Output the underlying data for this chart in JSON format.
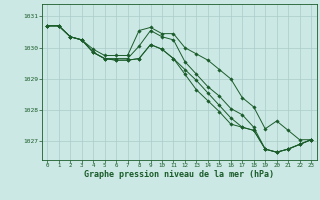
{
  "title": "Graphe pression niveau de la mer (hPa)",
  "bg_color": "#cce8e4",
  "grid_color": "#aaccca",
  "line_color": "#1a5c2a",
  "marker_color": "#1a5c2a",
  "tick_color": "#1a5c2a",
  "ylim": [
    1026.4,
    1031.4
  ],
  "xlim": [
    -0.5,
    23.5
  ],
  "yticks": [
    1027,
    1028,
    1029,
    1030,
    1031
  ],
  "xticks": [
    0,
    1,
    2,
    3,
    4,
    5,
    6,
    7,
    8,
    9,
    10,
    11,
    12,
    13,
    14,
    15,
    16,
    17,
    18,
    19,
    20,
    21,
    22,
    23
  ],
  "series": [
    [
      1030.7,
      1030.7,
      1030.35,
      1030.25,
      1029.95,
      1029.75,
      1029.75,
      1029.75,
      1030.55,
      1030.65,
      1030.45,
      1030.45,
      1030.0,
      1029.8,
      1029.6,
      1029.3,
      1029.0,
      1028.4,
      1028.1,
      1027.4,
      1027.65,
      1027.35,
      1027.05,
      1027.05
    ],
    [
      1030.7,
      1030.7,
      1030.35,
      1030.25,
      1029.85,
      1029.65,
      1029.65,
      1029.65,
      1030.05,
      1030.55,
      1030.35,
      1030.25,
      1029.55,
      1029.15,
      1028.75,
      1028.45,
      1028.05,
      1027.85,
      1027.45,
      1026.75,
      1026.65,
      1026.75,
      1026.9,
      1027.05
    ],
    [
      1030.7,
      1030.7,
      1030.35,
      1030.25,
      1029.85,
      1029.65,
      1029.6,
      1029.6,
      1029.65,
      1030.1,
      1029.95,
      1029.65,
      1029.3,
      1028.95,
      1028.55,
      1028.15,
      1027.75,
      1027.45,
      1027.35,
      1026.75,
      1026.65,
      1026.75,
      1026.9,
      1027.05
    ],
    [
      1030.7,
      1030.7,
      1030.35,
      1030.25,
      1029.85,
      1029.65,
      1029.6,
      1029.6,
      1029.65,
      1030.1,
      1029.95,
      1029.65,
      1029.15,
      1028.65,
      1028.3,
      1027.95,
      1027.55,
      1027.45,
      1027.35,
      1026.75,
      1026.65,
      1026.75,
      1026.9,
      1027.05
    ]
  ]
}
